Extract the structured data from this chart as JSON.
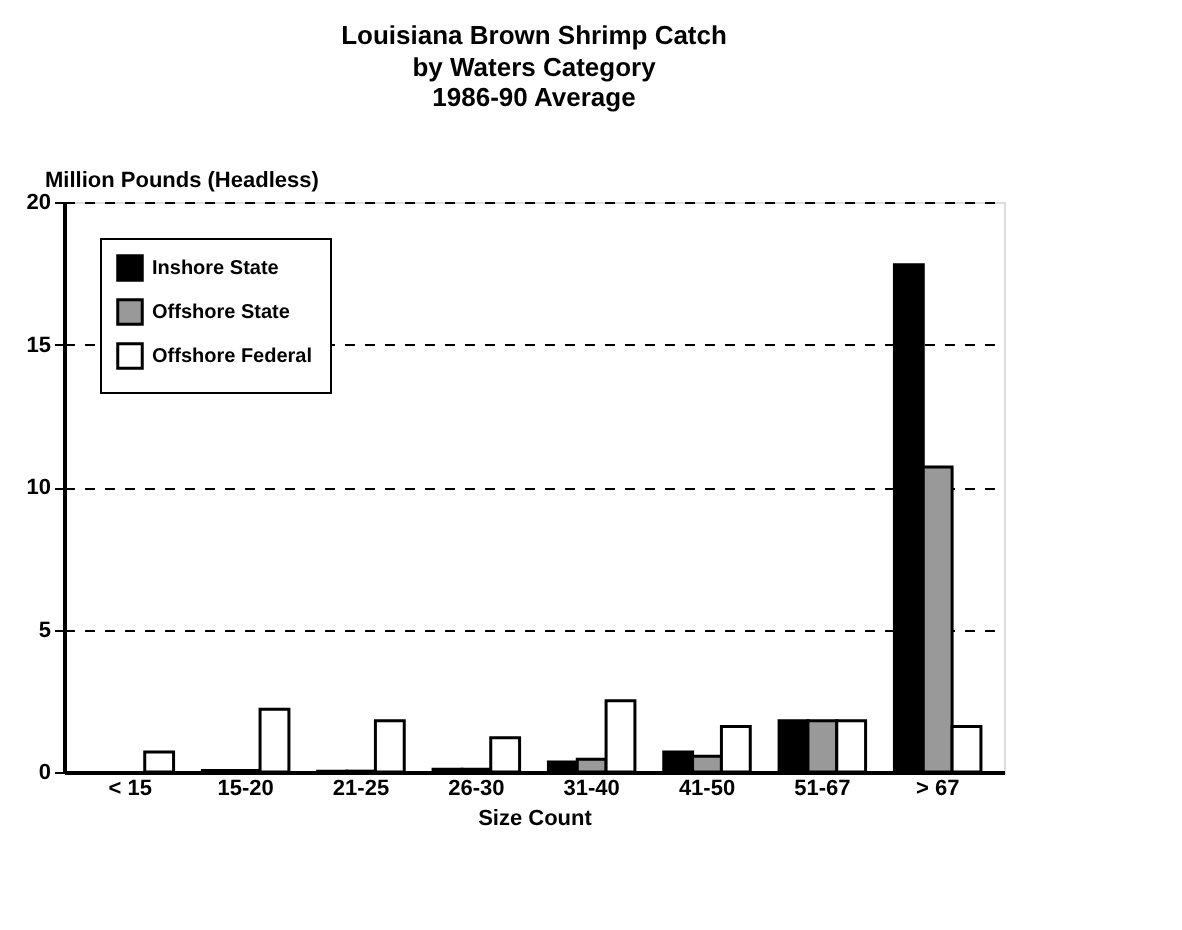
{
  "chart_data": {
    "type": "bar",
    "title": "Louisiana Brown Shrimp Catch",
    "subtitle": [
      "by Waters Category",
      "1986-90 Average"
    ],
    "xlabel": "Size Count",
    "ylabel": "Million Pounds (Headless)",
    "categories": [
      "< 15",
      "15-20",
      "21-25",
      "26-30",
      "31-40",
      "41-50",
      "51-67",
      "> 67"
    ],
    "series": [
      {
        "name": "Inshore State",
        "color": "#000000",
        "values": [
          null,
          0.05,
          0.03,
          0.1,
          0.35,
          0.7,
          1.8,
          17.8
        ]
      },
      {
        "name": "Offshore State",
        "color": "#999999",
        "values": [
          null,
          0.05,
          0.03,
          0.1,
          0.45,
          0.55,
          1.8,
          10.7
        ]
      },
      {
        "name": "Offshore Federal",
        "color": "#ffffff",
        "values": [
          0.7,
          2.2,
          1.8,
          1.2,
          2.5,
          1.6,
          1.8,
          1.6
        ]
      }
    ],
    "ylim": [
      0,
      20
    ],
    "yticks": [
      0,
      5,
      10,
      15,
      20
    ],
    "grid": "y",
    "legend": "top left"
  }
}
